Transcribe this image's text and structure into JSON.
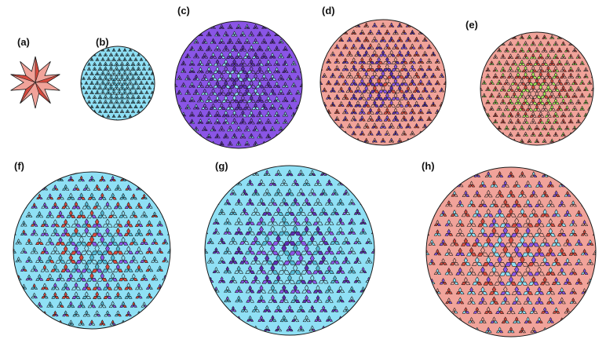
{
  "colors": {
    "cyan_face": "#8fe0f5",
    "cyan_dark": "#54bcd8",
    "purple_face": "#8a55e6",
    "purple_dark": "#5d2fb5",
    "red_face": "#f1a39a",
    "red_dark": "#d84a3e",
    "green_face": "#a8f05a",
    "edge": "#1a1a1a"
  },
  "panels": [
    {
      "label": "(a)",
      "shape": "star",
      "palette": [
        "red_face",
        "red_dark"
      ]
    },
    {
      "label": "(b)",
      "shape": "cluster",
      "palette": [
        "cyan_face",
        "cyan_dark"
      ]
    },
    {
      "label": "(c)",
      "shape": "cluster",
      "palette": [
        "purple_face",
        "purple_dark",
        "cyan_face"
      ]
    },
    {
      "label": "(d)",
      "shape": "cluster",
      "palette": [
        "red_face",
        "red_dark",
        "purple_face",
        "purple_dark"
      ]
    },
    {
      "label": "(e)",
      "shape": "cluster",
      "palette": [
        "red_face",
        "red_dark",
        "green_face"
      ]
    },
    {
      "label": "(f)",
      "shape": "cluster",
      "palette": [
        "cyan_face",
        "cyan_dark",
        "purple_face",
        "red_dark"
      ]
    },
    {
      "label": "(g)",
      "shape": "cluster",
      "palette": [
        "cyan_face",
        "cyan_dark",
        "purple_face",
        "purple_dark"
      ]
    },
    {
      "label": "(h)",
      "shape": "cluster",
      "palette": [
        "red_face",
        "red_dark",
        "cyan_face",
        "purple_face"
      ]
    }
  ]
}
